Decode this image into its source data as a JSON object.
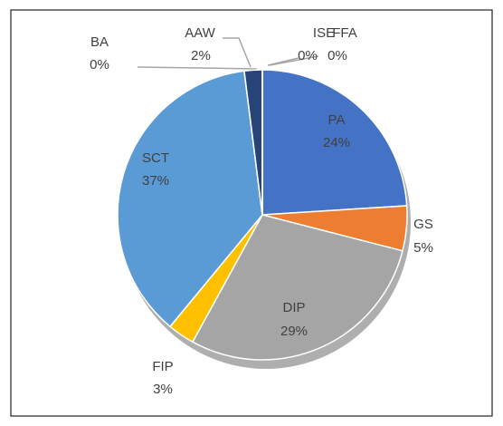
{
  "chart_data": {
    "type": "pie",
    "categories": [
      "PA",
      "GS",
      "DIP",
      "FIP",
      "SCT",
      "BA",
      "AAW",
      "ISE",
      "FFA"
    ],
    "values": [
      24,
      5,
      29,
      3,
      37,
      0,
      2,
      0,
      0
    ],
    "value_labels": [
      "24%",
      "5%",
      "29%",
      "3%",
      "37%",
      "0%",
      "2%",
      "0%",
      "0%"
    ],
    "colors": [
      "#4472c4",
      "#ed7d31",
      "#a5a5a5",
      "#ffc000",
      "#5b9bd5",
      "#70ad47",
      "#264478",
      "#9e480e",
      "#636363"
    ]
  }
}
